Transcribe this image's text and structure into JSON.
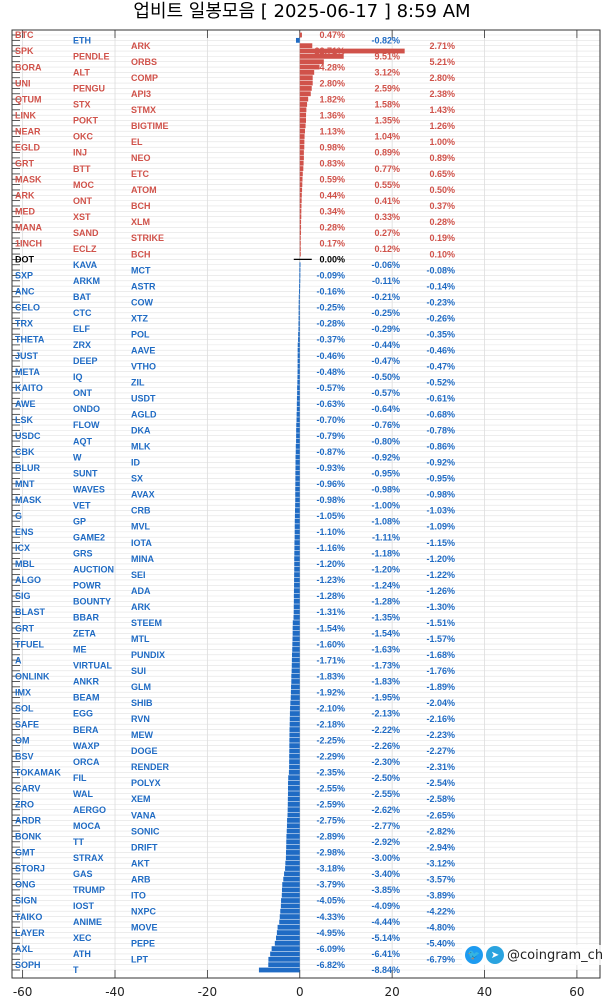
{
  "chart_data": {
    "type": "bar",
    "orientation": "horizontal",
    "title": "업비트 일봉모음 [ 2025-06-17 ]  8:59 AM",
    "xlabel": "",
    "ylabel": "",
    "xlim": [
      -62.3,
      65
    ],
    "xticks": [
      -60,
      -40,
      -20,
      0,
      20,
      40,
      60
    ],
    "grid": true,
    "colors": {
      "up": "#d0524a",
      "down": "#1f6bc4",
      "zero": "#000000"
    },
    "categories": [
      "BTC",
      "ETH",
      "ARK",
      "SPK",
      "PENDLE",
      "ORBS",
      "BORA",
      "ALT",
      "COMP",
      "UNI",
      "PENGU",
      "API3",
      "QTUM",
      "STX",
      "STMX",
      "LINK",
      "POKT",
      "BIGTIME",
      "NEAR",
      "OKC",
      "EL",
      "EGLD",
      "INJ",
      "NEO",
      "GRT",
      "BTT",
      "ETC",
      "MASK",
      "MOC",
      "ATOM",
      "ARK",
      "ONT",
      "BCH",
      "MED",
      "XST",
      "XLM",
      "MANA",
      "SAND",
      "STRIKE",
      "1INCH",
      "ECLZ",
      "BCH",
      "DOT",
      "KAVA",
      "MCT",
      "SXP",
      "ARKM",
      "ASTR",
      "ANC",
      "BAT",
      "COW",
      "CELO",
      "CTC",
      "XTZ",
      "TRX",
      "ELF",
      "POL",
      "THETA",
      "ZRX",
      "AAVE",
      "JUST",
      "DEEP",
      "VTHO",
      "META",
      "IQ",
      "ZIL",
      "KAITO",
      "ONT",
      "USDT",
      "AWE",
      "ONDO",
      "AGLD",
      "LSK",
      "FLOW",
      "DKA",
      "USDC",
      "AQT",
      "MLK",
      "CBK",
      "W",
      "ID",
      "BLUR",
      "SUNT",
      "SX",
      "MNT",
      "WAVES",
      "AVAX",
      "MASK",
      "VET",
      "CRB",
      "G",
      "GP",
      "MVL",
      "ENS",
      "GAME2",
      "IOTA",
      "ICX",
      "GRS",
      "MINA",
      "MBL",
      "AUCTION",
      "SEI",
      "ALGO",
      "POWR",
      "ADA",
      "SIG",
      "BOUNTY",
      "ARK",
      "BLAST",
      "BBAR",
      "STEEM",
      "GRT",
      "ZETA",
      "MTL",
      "TFUEL",
      "ME",
      "PUNDIX",
      "A",
      "VIRTUAL",
      "SUI",
      "ONLINK",
      "ANKR",
      "GLM",
      "IMX",
      "BEAM",
      "SHIB",
      "SOL",
      "EGG",
      "RVN",
      "SAFE",
      "BERA",
      "MEW",
      "OM",
      "WAXP",
      "DOGE",
      "BSV",
      "ORCA",
      "RENDER",
      "TOKAMAK",
      "FIL",
      "POLYX",
      "CARV",
      "WAL",
      "XEM",
      "ZRO",
      "AERGO",
      "VANA",
      "ARDR",
      "MOCA",
      "SONIC",
      "BONK",
      "TT",
      "DRIFT",
      "GMT",
      "STRAX",
      "AKT",
      "STORJ",
      "GAS",
      "ARB",
      "ONG",
      "TRUMP",
      "ITO",
      "SIGN",
      "IOST",
      "NXPC",
      "TAIKO",
      "ANIME",
      "MOVE",
      "LAYER",
      "XEC",
      "PEPE",
      "AXL",
      "ATH",
      "LPT",
      "SOPH",
      "T"
    ],
    "values": [
      0.47,
      -0.82,
      2.71,
      22.71,
      9.51,
      5.21,
      4.28,
      3.12,
      2.8,
      2.8,
      2.59,
      2.38,
      1.82,
      1.58,
      1.43,
      1.36,
      1.35,
      1.26,
      1.13,
      1.04,
      1.0,
      0.98,
      0.89,
      0.89,
      0.83,
      0.77,
      0.65,
      0.59,
      0.55,
      0.5,
      0.44,
      0.41,
      0.37,
      0.34,
      0.33,
      0.28,
      0.28,
      0.27,
      0.19,
      0.17,
      0.12,
      0.1,
      0.0,
      -0.06,
      -0.08,
      -0.09,
      -0.11,
      -0.14,
      -0.16,
      -0.21,
      -0.23,
      -0.25,
      -0.25,
      -0.26,
      -0.28,
      -0.29,
      -0.35,
      -0.37,
      -0.44,
      -0.46,
      -0.46,
      -0.47,
      -0.47,
      -0.48,
      -0.5,
      -0.52,
      -0.57,
      -0.57,
      -0.61,
      -0.63,
      -0.64,
      -0.68,
      -0.7,
      -0.76,
      -0.78,
      -0.79,
      -0.8,
      -0.86,
      -0.87,
      -0.92,
      -0.92,
      -0.93,
      -0.95,
      -0.95,
      -0.96,
      -0.98,
      -0.98,
      -0.98,
      -1.0,
      -1.03,
      -1.05,
      -1.08,
      -1.09,
      -1.1,
      -1.11,
      -1.15,
      -1.16,
      -1.18,
      -1.2,
      -1.2,
      -1.2,
      -1.22,
      -1.23,
      -1.24,
      -1.26,
      -1.28,
      -1.28,
      -1.3,
      -1.31,
      -1.35,
      -1.51,
      -1.54,
      -1.54,
      -1.57,
      -1.6,
      -1.63,
      -1.68,
      -1.71,
      -1.73,
      -1.76,
      -1.83,
      -1.83,
      -1.89,
      -1.92,
      -1.95,
      -2.04,
      -2.1,
      -2.13,
      -2.16,
      -2.18,
      -2.22,
      -2.23,
      -2.25,
      -2.26,
      -2.27,
      -2.29,
      -2.3,
      -2.31,
      -2.35,
      -2.5,
      -2.54,
      -2.55,
      -2.55,
      -2.58,
      -2.59,
      -2.62,
      -2.65,
      -2.75,
      -2.77,
      -2.82,
      -2.89,
      -2.92,
      -2.94,
      -2.98,
      -3.0,
      -3.12,
      -3.18,
      -3.4,
      -3.57,
      -3.79,
      -3.85,
      -3.89,
      -4.05,
      -4.09,
      -4.22,
      -4.33,
      -4.44,
      -4.8,
      -4.95,
      -5.14,
      -5.4,
      -6.09,
      -6.41,
      -6.79,
      -6.82,
      -8.84
    ],
    "value_suffix": "%"
  },
  "watermark": {
    "handle": "@coingram_ch",
    "icons": [
      "twitter-icon",
      "telegram-icon"
    ]
  }
}
